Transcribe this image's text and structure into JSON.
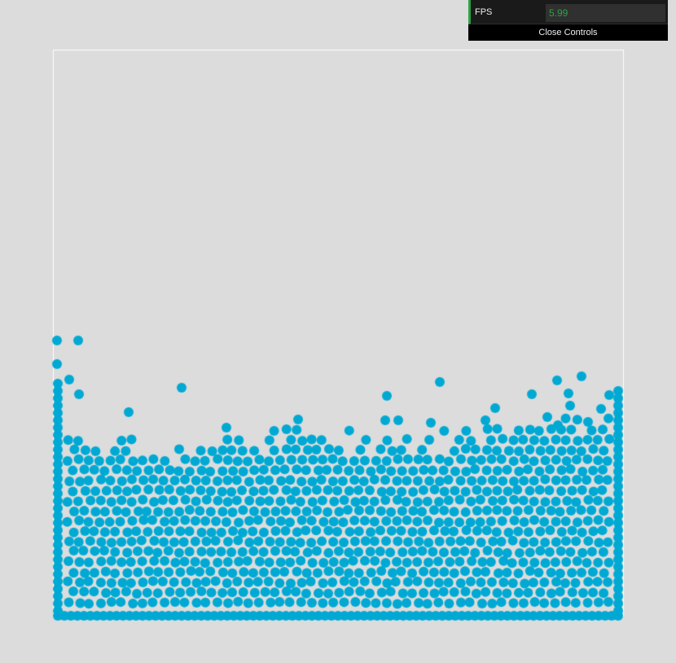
{
  "gui": {
    "fps_label": "FPS",
    "fps_value": "5.99",
    "close_label": "Close Controls"
  },
  "colors": {
    "background": "#dcdcdc",
    "container_border": "#ffffff",
    "particle": "#00a9d3",
    "gui_background": "#000000",
    "gui_accent": "#2fa146"
  }
}
